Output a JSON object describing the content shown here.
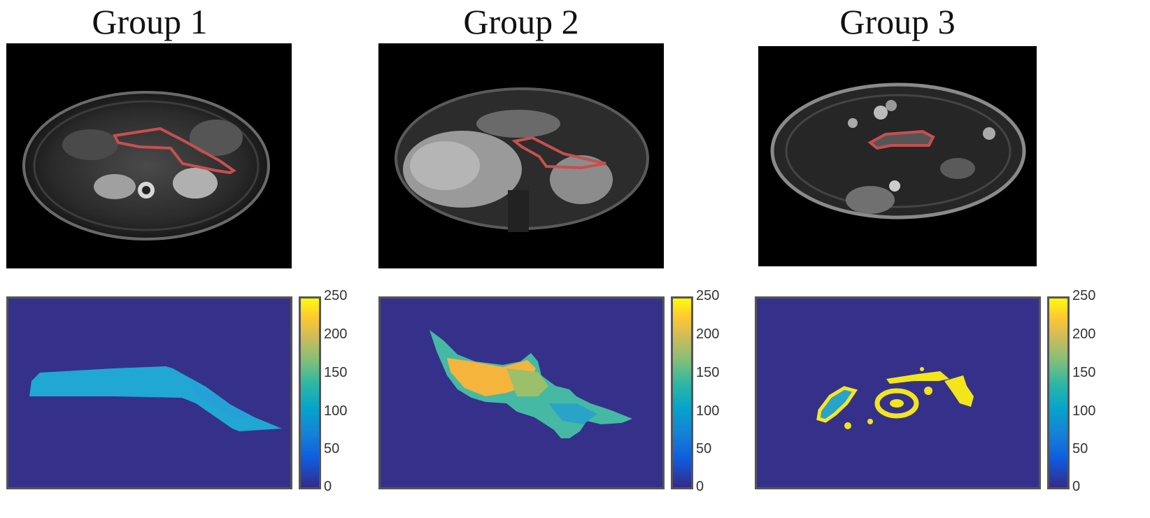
{
  "figure": {
    "groups": [
      {
        "title": "Group 1",
        "map_colors": [
          "#1ba8d6",
          "#20a7d3",
          "#2a9ed8"
        ]
      },
      {
        "title": "Group 2",
        "map_colors": [
          "#f5b43c",
          "#9cc06a",
          "#45b9a4",
          "#2aa4c6"
        ]
      },
      {
        "title": "Group 3",
        "map_colors": [
          "#f2e61a",
          "#f5e81e",
          "#29a3cc"
        ]
      }
    ],
    "colorbar": {
      "colormap": "parula",
      "min": 0,
      "max": 250,
      "ticks": [
        "250",
        "200",
        "150",
        "100",
        "50",
        "0"
      ]
    },
    "roi_color": "#c6504f"
  }
}
